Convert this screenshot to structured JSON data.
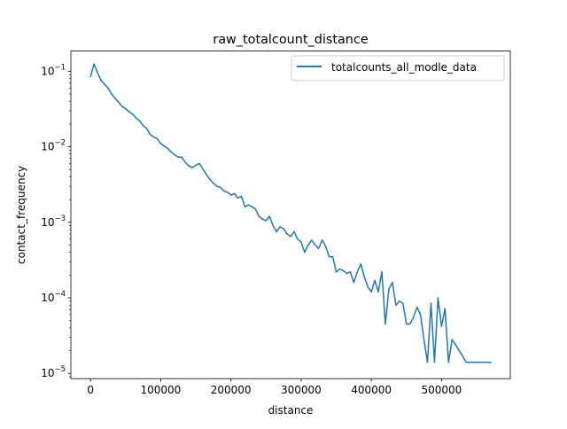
{
  "chart_data": {
    "type": "line",
    "title": "raw_totalcount_distance",
    "xlabel": "distance",
    "ylabel": "contact_frequency",
    "yscale": "log",
    "xlim": [
      -28000,
      598000
    ],
    "ylim": [
      8.5e-06,
      0.185
    ],
    "xticks": [
      {
        "value": 0,
        "label": "0"
      },
      {
        "value": 100000,
        "label": "100000"
      },
      {
        "value": 200000,
        "label": "200000"
      },
      {
        "value": 300000,
        "label": "300000"
      },
      {
        "value": 400000,
        "label": "400000"
      },
      {
        "value": 500000,
        "label": "500000"
      }
    ],
    "yticks": [
      {
        "value": 1e-05,
        "base": "10",
        "exp": "−5"
      },
      {
        "value": 0.0001,
        "base": "10",
        "exp": "−4"
      },
      {
        "value": 0.001,
        "base": "10",
        "exp": "−3"
      },
      {
        "value": 0.01,
        "base": "10",
        "exp": "−2"
      },
      {
        "value": 0.1,
        "base": "10",
        "exp": "−1"
      }
    ],
    "grid": false,
    "legend_position": "top-right",
    "series": [
      {
        "name": "totalcounts_all_modle_data",
        "color": "#1f77b4",
        "x": [
          0,
          5000,
          10000,
          15000,
          20000,
          25000,
          30000,
          35000,
          40000,
          45000,
          50000,
          55000,
          60000,
          65000,
          70000,
          75000,
          80000,
          85000,
          90000,
          95000,
          100000,
          105000,
          110000,
          115000,
          120000,
          125000,
          130000,
          135000,
          140000,
          145000,
          150000,
          155000,
          160000,
          165000,
          170000,
          175000,
          180000,
          185000,
          190000,
          195000,
          200000,
          205000,
          210000,
          215000,
          220000,
          225000,
          230000,
          235000,
          240000,
          245000,
          250000,
          255000,
          260000,
          265000,
          270000,
          275000,
          280000,
          285000,
          290000,
          295000,
          300000,
          305000,
          310000,
          315000,
          320000,
          325000,
          330000,
          335000,
          340000,
          345000,
          350000,
          355000,
          360000,
          365000,
          370000,
          375000,
          380000,
          385000,
          390000,
          395000,
          400000,
          405000,
          410000,
          415000,
          420000,
          425000,
          430000,
          435000,
          440000,
          445000,
          450000,
          455000,
          460000,
          465000,
          470000,
          475000,
          480000,
          485000,
          490000,
          495000,
          500000,
          505000,
          510000,
          515000,
          520000,
          525000,
          530000,
          535000,
          540000,
          545000,
          550000,
          555000,
          560000,
          565000,
          570000
        ],
        "y": [
          0.085,
          0.125,
          0.095,
          0.076,
          0.067,
          0.06,
          0.05,
          0.044,
          0.039,
          0.034,
          0.032,
          0.029,
          0.027,
          0.024,
          0.022,
          0.019,
          0.0175,
          0.0145,
          0.0135,
          0.0128,
          0.011,
          0.0102,
          0.0095,
          0.0085,
          0.0078,
          0.0073,
          0.0073,
          0.0062,
          0.0056,
          0.0053,
          0.0057,
          0.006,
          0.0051,
          0.0043,
          0.0037,
          0.0033,
          0.003,
          0.0029,
          0.0026,
          0.0025,
          0.0023,
          0.0024,
          0.0021,
          0.0022,
          0.0016,
          0.0017,
          0.0016,
          0.0015,
          0.0012,
          0.0011,
          0.00105,
          0.0012,
          0.0009,
          0.00075,
          0.00087,
          0.00082,
          0.0007,
          0.00065,
          0.00075,
          0.0006,
          0.00055,
          0.0004,
          0.0005,
          0.00058,
          0.0005,
          0.00045,
          0.00058,
          0.00048,
          0.00035,
          0.00035,
          0.00022,
          0.00024,
          0.00023,
          0.00021,
          0.00022,
          0.00016,
          0.00022,
          0.00028,
          0.00019,
          0.00014,
          0.00012,
          0.00017,
          0.00012,
          0.00022,
          4.5e-05,
          0.00013,
          0.00016,
          8e-05,
          9e-05,
          8.5e-05,
          4.5e-05,
          4.5e-05,
          5.5e-05,
          7.5e-05,
          6e-05,
          2.8e-05,
          1.4e-05,
          8.5e-05,
          1.4e-05,
          0.0001,
          4.2e-05,
          7.2e-05,
          1.4e-05,
          2.8e-05,
          2.4e-05,
          2e-05,
          1.7e-05,
          1.4e-05,
          1.4e-05,
          1.4e-05,
          1.4e-05,
          1.4e-05,
          1.4e-05,
          1.4e-05,
          1.4e-05
        ]
      }
    ]
  }
}
